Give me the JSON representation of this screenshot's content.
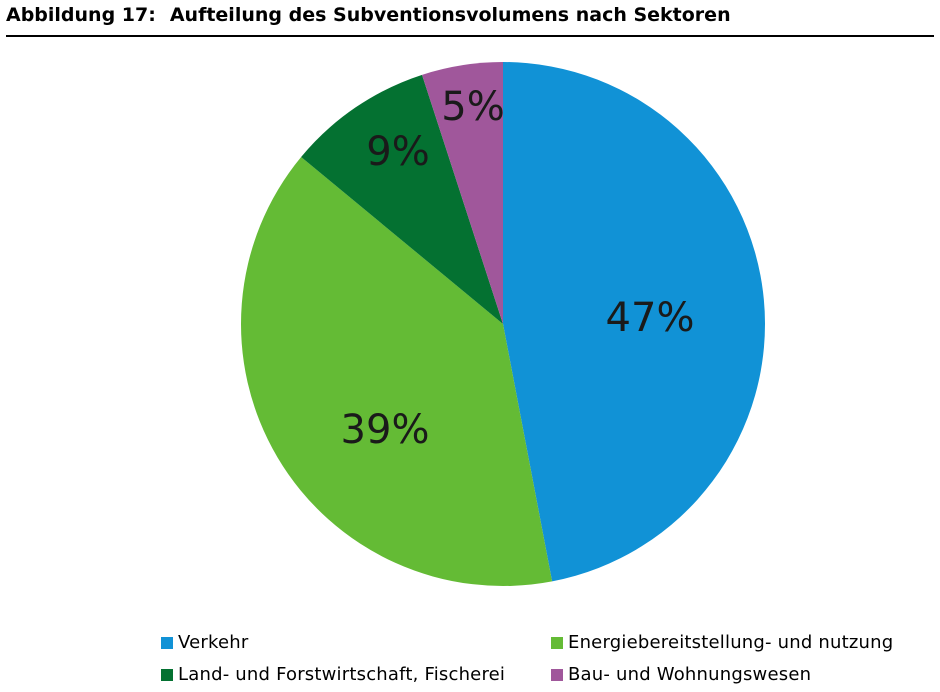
{
  "figure": {
    "number": "Abbildung 17:",
    "title": "Aufteilung des Subventionsvolumens nach Sektoren"
  },
  "chart_data": {
    "type": "pie",
    "title": "",
    "slices": [
      {
        "label": "Verkehr",
        "value": 47,
        "display": "47%",
        "color": "#1192d6"
      },
      {
        "label": "Energiebereitstellung- und nutzung",
        "value": 39,
        "display": "39%",
        "color": "#64bb35"
      },
      {
        "label": "Land- und Forstwirtschaft, Fischerei",
        "value": 9,
        "display": "9%",
        "color": "#047131"
      },
      {
        "label": "Bau- und Wohnungswesen",
        "value": 5,
        "display": "5%",
        "color": "#a0579b"
      }
    ],
    "start_angle": "12 o'clock",
    "direction": "clockwise",
    "legend_position": "bottom"
  }
}
